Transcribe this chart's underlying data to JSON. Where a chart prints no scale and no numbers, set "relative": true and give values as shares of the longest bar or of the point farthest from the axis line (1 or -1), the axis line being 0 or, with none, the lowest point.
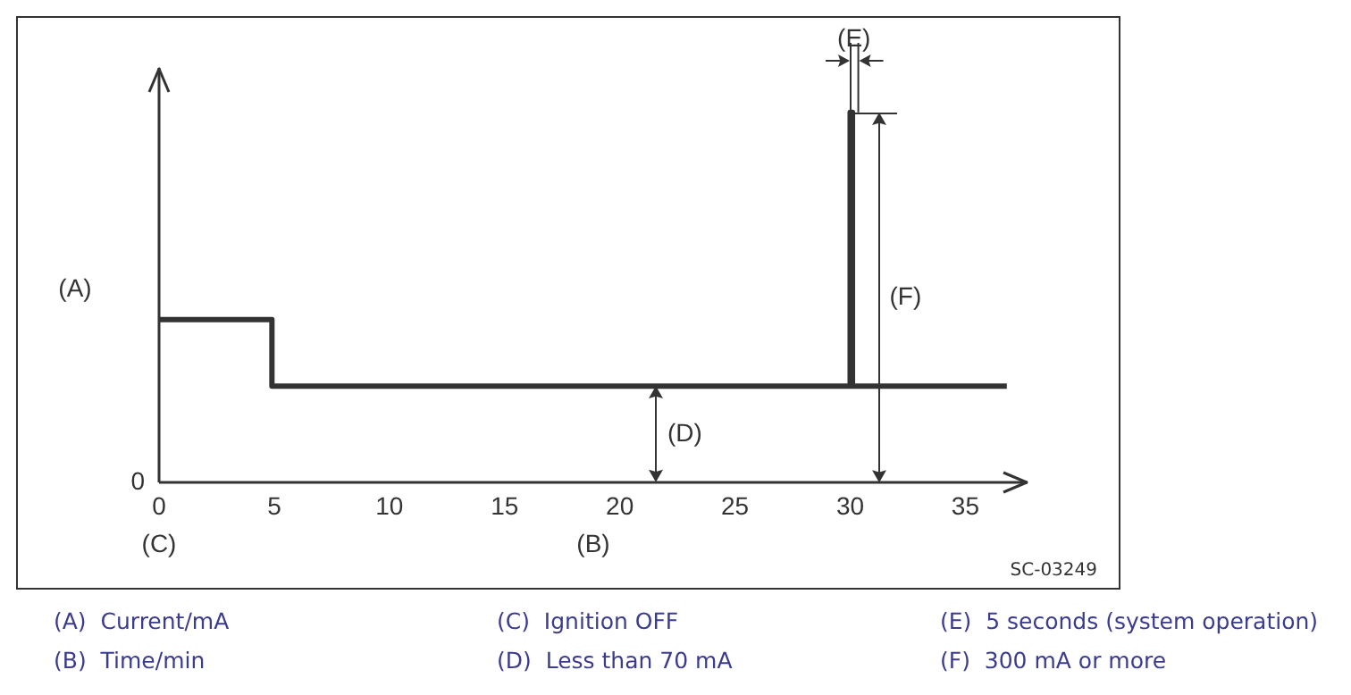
{
  "chart_data": {
    "type": "line",
    "relative": true,
    "xlabel": "(B)",
    "ylabel": "(A)",
    "xlim": [
      0,
      37.7
    ],
    "xticks": [
      0,
      5,
      10,
      15,
      20,
      25,
      30,
      35
    ],
    "legend": false,
    "marker": "none",
    "line_style": "solid",
    "series": [
      {
        "color": "#333333",
        "x": [
          0,
          4.9,
          4.9,
          30,
          30,
          30.1,
          30.1,
          36.8
        ],
        "values": [
          0.44,
          0.44,
          0.26,
          0.26,
          1,
          1,
          0.26,
          0.26
        ]
      }
    ],
    "annotations": [
      "SC-03249",
      "(A)  Current/mA",
      "(B)  Time/min",
      "(C)  Ignition OFF",
      "(D)  Less than 70 mA",
      "(E)  5 seconds (system operation)",
      "(F)  300 mA or more",
      "(C)",
      "0",
      "(F)",
      {
        "text": "(D)",
        "x": 21.6,
        "y": 0.26
      },
      {
        "text": "(E)",
        "x": 30,
        "y": 1
      }
    ]
  }
}
